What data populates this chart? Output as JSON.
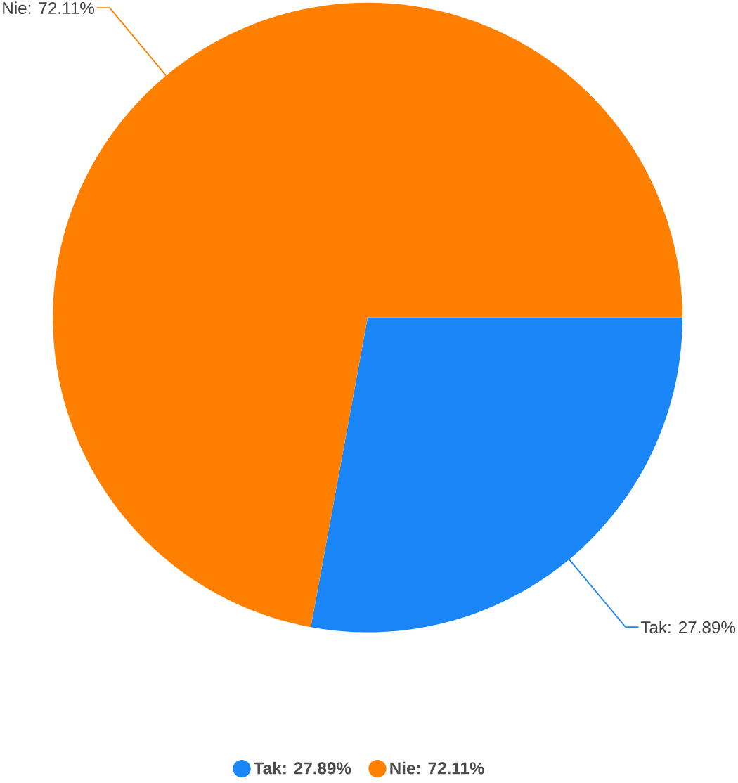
{
  "chart_data": {
    "type": "pie",
    "categories": [
      "Tak: 27.89%",
      "Nie: 72.11%"
    ],
    "values": [
      27.89,
      72.11
    ],
    "colors": [
      "#1a85f7",
      "#ff8000"
    ],
    "value_labels": [
      "Tak: 27.89%",
      "Nie: 72.11%"
    ],
    "legend": "bottom"
  }
}
